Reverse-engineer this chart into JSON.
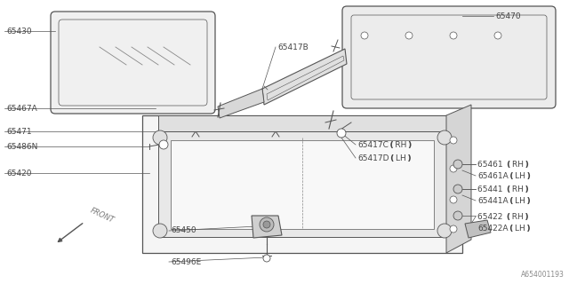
{
  "bg_color": "#ffffff",
  "line_color": "#555555",
  "label_color": "#444444",
  "diagram_id": "A654001193",
  "font_size": 6.5,
  "labels": {
    "65430": "65430",
    "65467A": "65467A",
    "65486N": "65486N",
    "65471": "65471",
    "65420": "65420",
    "65450": "65450",
    "65496E": "65496E",
    "65417B": "65417B",
    "65470": "65470",
    "65417C_RH": "65417C❪RH❫",
    "65417D_LH": "65417D❪LH❫",
    "65461_RH": "65461 ❪RH❫",
    "65461A_LH": "65461A❪LH❫",
    "65441_RH": "65441 ❪RH❫",
    "65441A_LH": "65441A❪LH❫",
    "65422_RH": "65422 ❪RH❫",
    "65422A_LH": "65422A❪LH❫"
  }
}
